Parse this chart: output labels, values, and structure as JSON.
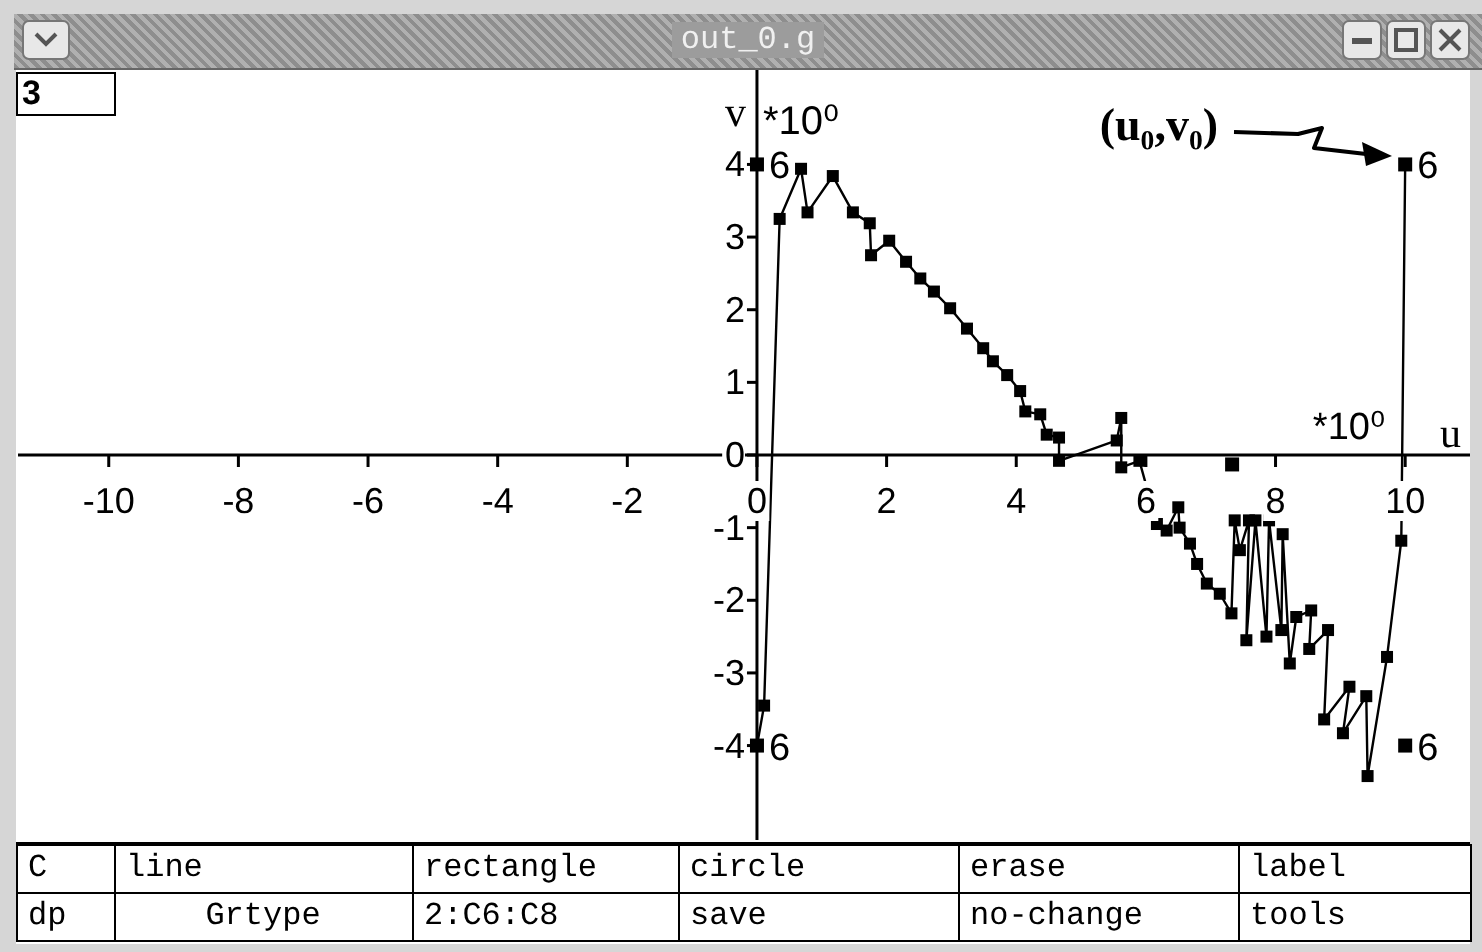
{
  "chart_data": {
    "type": "line",
    "title": "out_0.g",
    "xlabel": "u",
    "ylabel": "v",
    "annotations": [
      "(u₀,v₀)",
      "*10⁰",
      "*10⁰",
      "3",
      "C",
      "line",
      "rectangle",
      "circle",
      "erase",
      "label",
      "dp",
      "Grtype",
      "2:C6:C8",
      "save",
      "no-change",
      "tools"
    ],
    "xlim": [
      -11.4,
      11
    ],
    "ylim": [
      -5.3,
      5.3
    ],
    "xticks": [
      -10,
      -8,
      -6,
      -4,
      -2,
      0,
      2,
      4,
      6,
      8,
      10
    ],
    "yticks": [
      -4,
      -3,
      -2,
      -1,
      0,
      1,
      2,
      3,
      4
    ],
    "marker": "square",
    "line_style": "solid",
    "series": [
      {
        "color": "#000000",
        "x": [
          10,
          9.94,
          9.72,
          9.42,
          9.4,
          9.04,
          9.14,
          8.75,
          8.81,
          8.52,
          8.55,
          8.32,
          8.22,
          8.11,
          8.09,
          7.9,
          7.86,
          7.69,
          7.55,
          7.59,
          7.45,
          7.37,
          7.32,
          7.14,
          6.94,
          6.79,
          6.68,
          6.52,
          6.5,
          6.32,
          6.17,
          5.9,
          5.62,
          5.62,
          5.55,
          4.66,
          4.66,
          4.47,
          4.37,
          4.14,
          4.06,
          3.86,
          3.64,
          3.49,
          3.24,
          2.98,
          2.73,
          2.52,
          2.3,
          2.04,
          1.76,
          1.74,
          1.48,
          1.17,
          0.78,
          0.68,
          0.35,
          0.11,
          0
        ],
        "values": [
          4,
          -1.18,
          -2.78,
          -4.42,
          -3.32,
          -3.83,
          -3.19,
          -3.64,
          -2.41,
          -2.67,
          -2.14,
          -2.23,
          -2.87,
          -1.09,
          -2.41,
          -0.9,
          -2.5,
          -0.9,
          -2.55,
          -0.9,
          -1.31,
          -0.9,
          -2.18,
          -1.91,
          -1.77,
          -1.5,
          -1.22,
          -1.0,
          -0.72,
          -1.04,
          -0.95,
          -0.08,
          -0.17,
          0.51,
          0.2,
          -0.08,
          0.24,
          0.28,
          0.56,
          0.6,
          0.88,
          1.1,
          1.29,
          1.47,
          1.74,
          2.02,
          2.25,
          2.43,
          2.66,
          2.95,
          2.75,
          3.19,
          3.34,
          3.84,
          3.34,
          3.94,
          3.25,
          -3.45,
          -4
        ]
      },
      {
        "type": "scatter",
        "name": "6",
        "color": "#000000",
        "x": [
          0,
          10,
          10,
          0
        ],
        "values": [
          4,
          4,
          -4,
          -4
        ]
      },
      {
        "type": "scatter",
        "color": "#000000",
        "x": [
          7.33
        ],
        "values": [
          -0.13
        ]
      }
    ]
  }
}
